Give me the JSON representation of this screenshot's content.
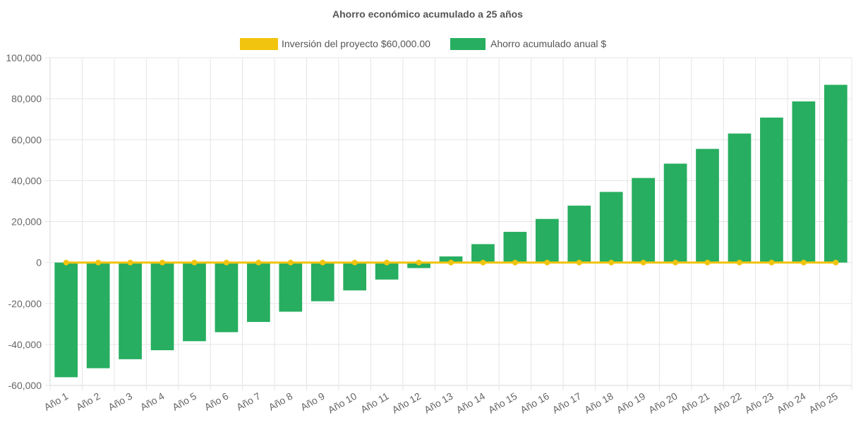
{
  "chart_data": {
    "type": "bar",
    "title": "Ahorro económico acumulado a 25 años",
    "xlabel": "",
    "ylabel": "",
    "ylim": [
      -60000,
      100000
    ],
    "y_ticks": [
      "100,000",
      "80,000",
      "60,000",
      "40,000",
      "20,000",
      "0",
      "-20,000",
      "-40,000",
      "-60,000"
    ],
    "y_tick_values": [
      100000,
      80000,
      60000,
      40000,
      20000,
      0,
      -20000,
      -40000,
      -60000
    ],
    "categories": [
      "Año 1",
      "Año 2",
      "Año 3",
      "Año 4",
      "Año 5",
      "Año 6",
      "Año 7",
      "Año 8",
      "Año 9",
      "Año 10",
      "Año 11",
      "Año 12",
      "Año 13",
      "Año 14",
      "Año 15",
      "Año 16",
      "Año 17",
      "Año 18",
      "Año 19",
      "Año 20",
      "Año 21",
      "Año 22",
      "Año 23",
      "Año 24",
      "Año 25"
    ],
    "grid": true,
    "legend_position": "top",
    "series": [
      {
        "name": "Inversión del proyecto $60,000.00",
        "type": "line",
        "color": "#f1c40f",
        "values": [
          0,
          0,
          0,
          0,
          0,
          0,
          0,
          0,
          0,
          0,
          0,
          0,
          0,
          0,
          0,
          0,
          0,
          0,
          0,
          0,
          0,
          0,
          0,
          0,
          0
        ]
      },
      {
        "name": "Ahorro acumulado anual $",
        "type": "bar",
        "color": "#27ae60",
        "values": [
          -56000,
          -51600,
          -47200,
          -42800,
          -38400,
          -34000,
          -29000,
          -24000,
          -18900,
          -13600,
          -8300,
          -2700,
          3000,
          9000,
          15000,
          21300,
          27800,
          34500,
          41300,
          48300,
          55500,
          63000,
          70800,
          78700,
          86800
        ]
      }
    ]
  }
}
